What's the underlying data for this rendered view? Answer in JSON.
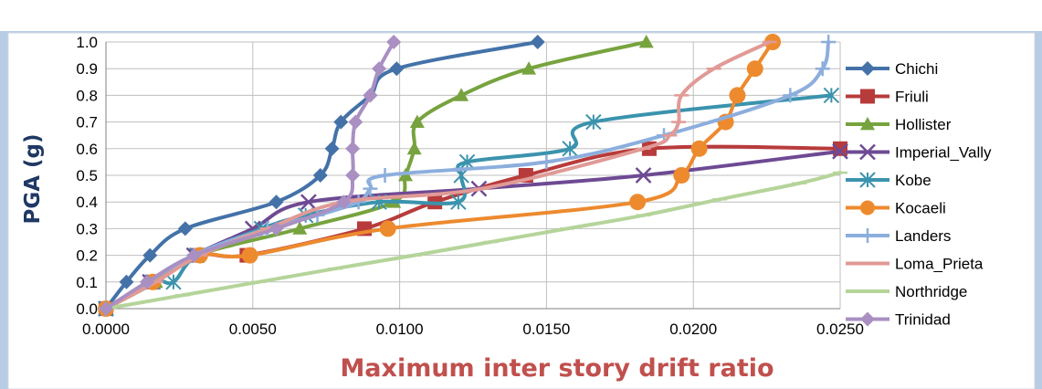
{
  "chart_data": {
    "type": "line",
    "title": "",
    "xlabel": "Maximum inter story drift ratio",
    "ylabel": "PGA (g)",
    "xlim": [
      0,
      0.025
    ],
    "ylim": [
      0,
      1.0
    ],
    "x_ticks": [
      "0.0000",
      "0.0050",
      "0.0100",
      "0.0150",
      "0.0200",
      "0.0250"
    ],
    "y_ticks": [
      "0.0",
      "0.1",
      "0.2",
      "0.3",
      "0.4",
      "0.5",
      "0.6",
      "0.7",
      "0.8",
      "0.9",
      "1.0"
    ],
    "grid": true,
    "legend_position": "right",
    "background_color": "#b8cce4",
    "series": [
      {
        "name": "Chichi",
        "color": "#4472a8",
        "marker": "diamond",
        "x": [
          0,
          0.0007,
          0.0015,
          0.0027,
          0.0058,
          0.0073,
          0.0077,
          0.008,
          0.009,
          0.0099,
          0.0147
        ],
        "y": [
          0,
          0.1,
          0.2,
          0.3,
          0.4,
          0.5,
          0.6,
          0.7,
          0.8,
          0.9,
          1.0
        ]
      },
      {
        "name": "Friuli",
        "color": "#b83b3b",
        "marker": "square",
        "x": [
          0,
          0.0016,
          0.0031,
          0.0048,
          0.0088,
          0.0112,
          0.0143,
          0.0185,
          0.025
        ],
        "y": [
          0,
          0.1,
          0.2,
          0.2,
          0.3,
          0.4,
          0.5,
          0.6,
          0.6
        ]
      },
      {
        "name": "Hollister",
        "color": "#77a33e",
        "marker": "triangle",
        "x": [
          0,
          0.0017,
          0.0031,
          0.0066,
          0.0098,
          0.0102,
          0.0105,
          0.0106,
          0.0121,
          0.0144,
          0.0184
        ],
        "y": [
          0,
          0.1,
          0.2,
          0.3,
          0.4,
          0.5,
          0.6,
          0.7,
          0.8,
          0.9,
          1.0
        ]
      },
      {
        "name": "Imperial_Vally",
        "color": "#6e4a93",
        "marker": "x",
        "x": [
          0,
          0.0015,
          0.003,
          0.005,
          0.0069,
          0.0127,
          0.0183,
          0.025
        ],
        "y": [
          0,
          0.1,
          0.2,
          0.3,
          0.4,
          0.45,
          0.5,
          0.59
        ]
      },
      {
        "name": "Kobe",
        "color": "#3b93ad",
        "marker": "asterisk",
        "x": [
          0,
          0.0016,
          0.0023,
          0.0031,
          0.0053,
          0.0068,
          0.0093,
          0.012,
          0.0121,
          0.0123,
          0.0158,
          0.0166,
          0.0247
        ],
        "y": [
          0,
          0.1,
          0.1,
          0.2,
          0.3,
          0.35,
          0.4,
          0.4,
          0.5,
          0.55,
          0.6,
          0.7,
          0.8
        ]
      },
      {
        "name": "Kocaeli",
        "color": "#ed8a2e",
        "marker": "circle",
        "x": [
          0,
          0.0016,
          0.0032,
          0.0049,
          0.0096,
          0.0181,
          0.0196,
          0.0202,
          0.0211,
          0.0215,
          0.0221,
          0.0227
        ],
        "y": [
          0,
          0.1,
          0.2,
          0.2,
          0.3,
          0.4,
          0.5,
          0.6,
          0.7,
          0.8,
          0.9,
          1.0
        ]
      },
      {
        "name": "Landers",
        "color": "#8caedd",
        "marker": "plus",
        "x": [
          0,
          0.003,
          0.0055,
          0.0072,
          0.0086,
          0.009,
          0.0095,
          0.015,
          0.019,
          0.0233,
          0.0244,
          0.0246
        ],
        "y": [
          0,
          0.2,
          0.3,
          0.35,
          0.4,
          0.45,
          0.5,
          0.55,
          0.65,
          0.8,
          0.9,
          1.0
        ]
      },
      {
        "name": "Loma_Prieta",
        "color": "#e19a96",
        "marker": "dash",
        "x": [
          0,
          0.0017,
          0.0032,
          0.0055,
          0.0081,
          0.0128,
          0.0183,
          0.0192,
          0.0195,
          0.0196,
          0.0207,
          0.0226
        ],
        "y": [
          0,
          0.1,
          0.2,
          0.3,
          0.4,
          0.45,
          0.6,
          0.65,
          0.7,
          0.8,
          0.9,
          1.0
        ]
      },
      {
        "name": "Northridge",
        "color": "#b5d49a",
        "marker": "dash",
        "x": [
          0,
          0.0026,
          0.0052,
          0.0078,
          0.0105,
          0.0131,
          0.0157,
          0.0183,
          0.0209,
          0.0236,
          0.025
        ],
        "y": [
          0,
          0.05,
          0.1,
          0.15,
          0.2,
          0.25,
          0.3,
          0.35,
          0.41,
          0.47,
          0.51
        ]
      },
      {
        "name": "Trinidad",
        "color": "#a98fc2",
        "marker": "diamond",
        "x": [
          0,
          0.0014,
          0.003,
          0.0058,
          0.0081,
          0.0084,
          0.0084,
          0.0085,
          0.009,
          0.0093,
          0.0098
        ],
        "y": [
          0,
          0.1,
          0.2,
          0.3,
          0.4,
          0.5,
          0.6,
          0.7,
          0.8,
          0.9,
          1.0
        ]
      }
    ]
  }
}
